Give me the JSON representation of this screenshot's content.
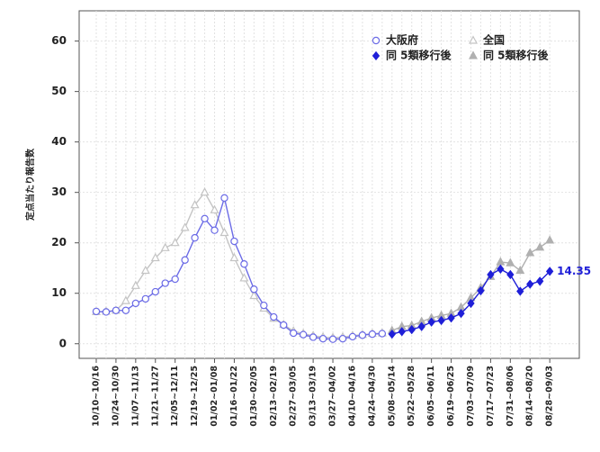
{
  "chart_data": {
    "type": "line",
    "ylabel": "定点当たり報告数",
    "categories": [
      "10/10~10/16",
      null,
      "10/24~10/30",
      null,
      "11/07~11/13",
      null,
      "11/21~11/27",
      null,
      "12/05~12/11",
      null,
      "12/19~12/25",
      null,
      "01/02~01/08",
      null,
      "01/16~01/22",
      null,
      "01/30~02/05",
      null,
      "02/13~02/19",
      null,
      "02/27~03/05",
      null,
      "03/13~03/19",
      null,
      "03/27~04/02",
      null,
      "04/10~04/16",
      null,
      "04/24~04/30",
      null,
      "05/08~05/14",
      null,
      "05/22~05/28",
      null,
      "06/05~06/11",
      null,
      "06/19~06/25",
      null,
      "07/03~07/09",
      null,
      "07/17~07/23",
      null,
      "07/31~08/06",
      null,
      "08/14~08/20",
      null,
      "08/28~09/03"
    ],
    "ylim": [
      -2.9,
      66
    ],
    "yticks": [
      0,
      10,
      20,
      30,
      40,
      50,
      60
    ],
    "grid": true,
    "series": [
      {
        "name": "大阪府",
        "color": "#6b6be6",
        "marker": "circle-open",
        "values": [
          6.4,
          6.3,
          6.6,
          6.6,
          8.0,
          8.9,
          10.3,
          12.0,
          12.8,
          16.6,
          21.0,
          24.8,
          22.5,
          28.9,
          20.3,
          15.8,
          10.8,
          7.6,
          5.3,
          3.7,
          2.1,
          1.8,
          1.3,
          1.0,
          0.9,
          1.0,
          1.4,
          1.7,
          1.9,
          2.0,
          null,
          null,
          null,
          null,
          null,
          null,
          null,
          null,
          null,
          null,
          null,
          null,
          null,
          null,
          null,
          null,
          null
        ]
      },
      {
        "name": "全国",
        "color": "#c4c4c4",
        "marker": "triangle-open",
        "values": [
          6.3,
          6.4,
          6.6,
          8.5,
          11.5,
          14.5,
          17.0,
          19.0,
          20.0,
          23.0,
          27.5,
          30.0,
          26.5,
          22.0,
          17.0,
          13.0,
          9.5,
          7.0,
          5.0,
          3.8,
          2.5,
          2.0,
          1.6,
          1.3,
          1.2,
          1.3,
          1.6,
          1.8,
          2.0,
          2.1,
          null,
          null,
          null,
          null,
          null,
          null,
          null,
          null,
          null,
          null,
          null,
          null,
          null,
          null,
          null,
          null,
          null
        ]
      },
      {
        "name": "同 5類移行後",
        "color": "#1f1fd8",
        "marker": "diamond",
        "values": [
          null,
          null,
          null,
          null,
          null,
          null,
          null,
          null,
          null,
          null,
          null,
          null,
          null,
          null,
          null,
          null,
          null,
          null,
          null,
          null,
          null,
          null,
          null,
          null,
          null,
          null,
          null,
          null,
          null,
          null,
          1.9,
          2.4,
          2.8,
          3.4,
          4.3,
          4.6,
          5.1,
          6.0,
          8.0,
          10.5,
          13.7,
          14.8,
          13.7,
          10.4,
          11.8,
          12.4,
          14.35
        ],
        "value_labels": [
          null,
          null,
          null,
          null,
          null,
          null,
          null,
          null,
          null,
          null,
          null,
          null,
          null,
          null,
          null,
          null,
          null,
          null,
          null,
          null,
          null,
          null,
          null,
          null,
          null,
          null,
          null,
          null,
          null,
          null,
          null,
          null,
          null,
          null,
          null,
          null,
          null,
          null,
          null,
          null,
          null,
          null,
          null,
          null,
          null,
          null,
          "14.35"
        ]
      },
      {
        "name": "同 5類移行後",
        "color": "#b0b0b0",
        "marker": "triangle",
        "values": [
          null,
          null,
          null,
          null,
          null,
          null,
          null,
          null,
          null,
          null,
          null,
          null,
          null,
          null,
          null,
          null,
          null,
          null,
          null,
          null,
          null,
          null,
          null,
          null,
          null,
          null,
          null,
          null,
          null,
          null,
          2.6,
          3.4,
          3.6,
          4.4,
          5.1,
          5.6,
          6.0,
          7.2,
          9.1,
          11.1,
          13.3,
          16.2,
          16.0,
          14.5,
          18.0,
          19.1,
          20.5
        ]
      }
    ]
  }
}
